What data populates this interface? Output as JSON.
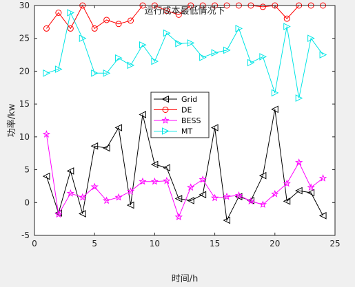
{
  "chart_data": {
    "type": "line",
    "title": "运行成本最低情况下",
    "xlabel": "时间/h",
    "ylabel": "功率/kw",
    "xlim": [
      0,
      25
    ],
    "ylim": [
      -5,
      30
    ],
    "xticks": [
      0,
      5,
      10,
      15,
      20,
      25
    ],
    "yticks": [
      -5,
      0,
      5,
      10,
      15,
      20,
      25,
      30
    ],
    "grid": false,
    "legend_position": "center-left",
    "x": [
      1,
      2,
      3,
      4,
      5,
      6,
      7,
      8,
      9,
      10,
      11,
      12,
      13,
      14,
      15,
      16,
      17,
      18,
      19,
      20,
      21,
      22,
      23,
      24
    ],
    "series": [
      {
        "name": "Grid",
        "color": "#000000",
        "marker": "triangle-left",
        "values": [
          4.0,
          -1.6,
          4.8,
          -1.7,
          8.6,
          8.3,
          11.4,
          -0.4,
          13.4,
          5.8,
          5.3,
          0.6,
          0.3,
          1.2,
          11.4,
          -2.7,
          0.9,
          0.3,
          4.1,
          14.2,
          0.2,
          1.8,
          1.5,
          -2.0
        ]
      },
      {
        "name": "DE",
        "color": "#ff0000",
        "marker": "circle",
        "values": [
          26.5,
          28.9,
          26.5,
          30.0,
          26.5,
          27.8,
          27.2,
          27.7,
          30.0,
          30.0,
          29.2,
          28.6,
          30.0,
          30.0,
          30.0,
          30.0,
          30.0,
          30.0,
          29.8,
          30.0,
          28.0,
          30.0,
          30.0,
          30.0
        ]
      },
      {
        "name": "BESS",
        "color": "#ff00ff",
        "marker": "star",
        "values": [
          10.4,
          -1.8,
          1.4,
          0.8,
          2.4,
          0.3,
          0.8,
          1.7,
          3.2,
          3.2,
          3.3,
          -2.2,
          2.3,
          3.5,
          0.7,
          0.9,
          1.1,
          0.2,
          -0.3,
          1.3,
          2.9,
          6.1,
          2.3,
          3.7
        ]
      },
      {
        "name": "MT",
        "color": "#00e5e5",
        "marker": "triangle-right",
        "values": [
          19.7,
          20.3,
          28.9,
          25.0,
          19.7,
          19.7,
          22.0,
          20.9,
          24.0,
          21.5,
          25.8,
          24.2,
          24.3,
          22.1,
          22.8,
          23.2,
          26.5,
          21.3,
          22.2,
          16.7,
          26.8,
          15.9,
          25.0,
          22.5
        ]
      }
    ]
  }
}
